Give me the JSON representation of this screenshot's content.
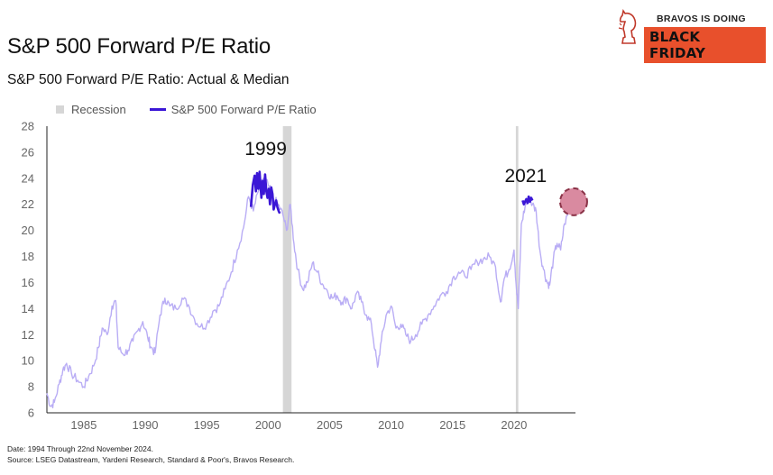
{
  "header": {
    "title": "S&P 500 Forward P/E Ratio",
    "subtitle": "S&P 500 Forward P/E Ratio: Actual & Median"
  },
  "brand": {
    "line1": "BRAVOS IS DOING",
    "badge": "BLACK FRIDAY",
    "accent_color": "#e8502c",
    "logo_icon": "chess-knight-icon"
  },
  "legend": {
    "recession_label": "Recession",
    "series_label": "S&P 500 Forward P/E Ratio"
  },
  "footer": {
    "line1": "Date: 1994 Through 22nd November 2024.",
    "line2": "Source: LSEG Datastream, Yardeni Research, Standard & Poor's, Bravos Research."
  },
  "chart_data": {
    "type": "line",
    "subtitle": "S&P 500 Forward P/E Ratio: Actual & Median",
    "xlim": [
      1982.0,
      2025.0
    ],
    "ylim": [
      6,
      28
    ],
    "x_ticks": [
      1985,
      1990,
      1995,
      2000,
      2005,
      2010,
      2015,
      2020
    ],
    "y_ticks": [
      6,
      8,
      10,
      12,
      14,
      16,
      18,
      20,
      22,
      24,
      26,
      28
    ],
    "grid": false,
    "legend_position": "top-left",
    "colors": {
      "series_light": "#b9adf5",
      "highlight": "#3b17d6",
      "recession": "#d6d6d6",
      "marker_fill": "#d98aa0",
      "marker_stroke": "#8a3247"
    },
    "recessions": [
      [
        2001.2,
        2001.9
      ],
      [
        2020.15,
        2020.35
      ]
    ],
    "series": [
      {
        "name": "S&P 500 Forward P/E Ratio",
        "x": [
          1982.0,
          1982.3,
          1982.6,
          1983.0,
          1983.3,
          1983.6,
          1984.0,
          1984.5,
          1985.0,
          1985.4,
          1985.8,
          1986.2,
          1986.5,
          1986.9,
          1987.3,
          1987.6,
          1987.8,
          1988.2,
          1988.6,
          1989.0,
          1989.4,
          1989.8,
          1990.2,
          1990.5,
          1990.8,
          1991.2,
          1991.6,
          1992.0,
          1992.5,
          1993.0,
          1993.5,
          1994.0,
          1994.5,
          1995.0,
          1995.5,
          1996.0,
          1996.5,
          1997.0,
          1997.5,
          1998.0,
          1998.4,
          1998.8,
          1999.2,
          1999.6,
          2000.0,
          2000.4,
          2000.8,
          2001.2,
          2001.5,
          2001.8,
          2002.1,
          2002.4,
          2002.8,
          2003.2,
          2003.6,
          2004.0,
          2004.4,
          2004.8,
          2005.2,
          2005.6,
          2006.0,
          2006.4,
          2006.8,
          2007.2,
          2007.6,
          2008.0,
          2008.4,
          2008.7,
          2008.9,
          2009.2,
          2009.6,
          2010.0,
          2010.4,
          2010.8,
          2011.2,
          2011.6,
          2012.0,
          2012.5,
          2013.0,
          2013.5,
          2014.0,
          2014.5,
          2015.0,
          2015.5,
          2016.0,
          2016.5,
          2017.0,
          2017.5,
          2018.0,
          2018.5,
          2018.9,
          2019.2,
          2019.6,
          2020.0,
          2020.2,
          2020.35,
          2020.6,
          2020.9,
          2021.2,
          2021.5,
          2021.8,
          2022.1,
          2022.4,
          2022.7,
          2022.9,
          2023.2,
          2023.5,
          2023.8,
          2024.1,
          2024.5,
          2024.9
        ],
        "values": [
          7.5,
          6.5,
          6.8,
          8.2,
          9.3,
          9.8,
          9.0,
          8.5,
          8.0,
          8.8,
          9.6,
          11.0,
          12.5,
          12.0,
          14.2,
          14.6,
          11.0,
          10.5,
          10.8,
          11.5,
          12.3,
          13.0,
          11.8,
          11.0,
          10.6,
          13.5,
          14.8,
          14.2,
          14.0,
          14.8,
          14.3,
          13.2,
          12.6,
          12.8,
          13.8,
          14.2,
          15.5,
          16.8,
          18.5,
          20.2,
          22.6,
          21.5,
          23.0,
          24.0,
          23.5,
          22.5,
          22.0,
          21.2,
          20.0,
          22.0,
          19.0,
          17.0,
          15.5,
          16.0,
          17.5,
          16.8,
          15.9,
          15.4,
          14.8,
          15.0,
          14.5,
          14.8,
          14.0,
          15.2,
          14.5,
          13.5,
          12.8,
          10.8,
          9.5,
          11.5,
          13.5,
          14.2,
          12.5,
          12.8,
          12.0,
          11.5,
          12.0,
          12.8,
          13.5,
          14.2,
          15.0,
          15.3,
          16.3,
          16.8,
          16.5,
          17.0,
          17.6,
          17.8,
          18.0,
          17.2,
          14.5,
          16.3,
          17.0,
          18.5,
          15.5,
          14.0,
          20.5,
          21.8,
          22.5,
          22.0,
          21.5,
          18.5,
          17.0,
          16.0,
          15.8,
          17.8,
          19.0,
          18.5,
          20.5,
          21.5,
          22.3
        ]
      },
      {
        "name": "1999 highlight",
        "x": [
          1998.6,
          1998.75,
          1998.9,
          1999.0,
          1999.1,
          1999.2,
          1999.3,
          1999.45,
          1999.55,
          1999.65,
          1999.75,
          1999.85,
          1999.95,
          2000.05,
          2000.15,
          2000.25,
          2000.35,
          2000.45,
          2000.55,
          2000.65,
          2000.75,
          2000.85,
          2000.95
        ],
        "values": [
          21.8,
          23.5,
          24.2,
          23.0,
          24.4,
          23.2,
          24.5,
          22.5,
          23.8,
          22.8,
          24.3,
          23.0,
          22.5,
          23.2,
          22.0,
          23.3,
          22.8,
          21.6,
          22.0,
          22.3,
          21.8,
          21.5,
          21.3
        ]
      },
      {
        "name": "2021 highlight",
        "x": [
          2020.7,
          2020.8,
          2020.9,
          2021.0,
          2021.1,
          2021.2,
          2021.3,
          2021.4,
          2021.5
        ],
        "values": [
          22.3,
          22.0,
          22.2,
          22.4,
          22.1,
          22.6,
          22.2,
          22.5,
          22.3
        ]
      }
    ],
    "annotations": [
      {
        "text": "1999",
        "x": 1999.8,
        "y": 25.8
      },
      {
        "text": "2021",
        "x": 2020.95,
        "y": 23.7
      }
    ],
    "marker": {
      "x": 2024.85,
      "y": 22.2
    }
  }
}
